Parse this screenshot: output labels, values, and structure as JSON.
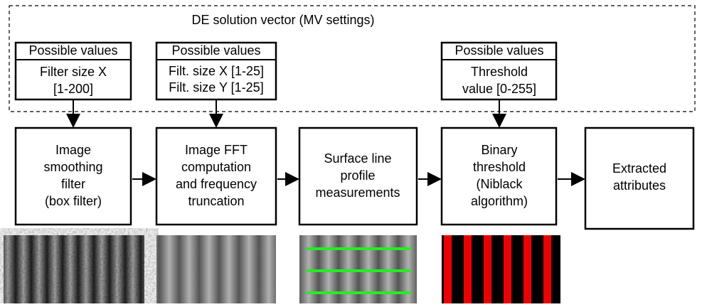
{
  "title": "DE solution vector (MV settings)",
  "params": [
    {
      "header": "Possible values",
      "lines": [
        "Filter size X",
        "[1-200]"
      ]
    },
    {
      "header": "Possible values",
      "lines": [
        "Filt. size X [1-25]",
        "Filt. size Y [1-25]"
      ]
    },
    {
      "header": "Possible values",
      "lines": [
        "Threshold",
        "value [0-255]"
      ]
    }
  ],
  "steps": [
    {
      "lines": [
        "Image",
        "smoothing",
        "filter",
        "(box filter)"
      ]
    },
    {
      "lines": [
        "Image FFT",
        "computation",
        "and frequency",
        "truncation"
      ]
    },
    {
      "lines": [
        "Surface line",
        "profile",
        "measurements"
      ]
    },
    {
      "lines": [
        "Binary",
        "threshold",
        "(Niblack",
        "algorithm)"
      ]
    },
    {
      "lines": [
        "Extracted",
        "attributes"
      ]
    }
  ]
}
